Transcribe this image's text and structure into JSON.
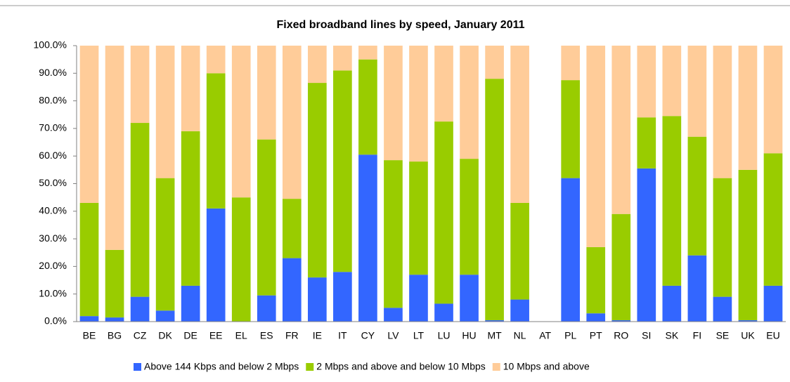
{
  "chart_data": {
    "type": "stacked_bar",
    "title": "Fixed broadband lines by speed, January 2011",
    "categories": [
      "BE",
      "BG",
      "CZ",
      "DK",
      "DE",
      "EE",
      "EL",
      "ES",
      "FR",
      "IE",
      "IT",
      "CY",
      "LV",
      "LT",
      "LU",
      "HU",
      "MT",
      "NL",
      "AT",
      "PL",
      "PT",
      "RO",
      "SI",
      "SK",
      "FI",
      "SE",
      "UK",
      "EU"
    ],
    "series": [
      {
        "name": "Above 144 Kbps and below 2 Mbps",
        "color": "#3366ff",
        "values": [
          2,
          1.5,
          9,
          4,
          13,
          41,
          0,
          9.5,
          23,
          16,
          18,
          60.5,
          5,
          17,
          6.5,
          17,
          0.5,
          8,
          null,
          52,
          3,
          0.5,
          55.5,
          13,
          24,
          9,
          0.5,
          13
        ]
      },
      {
        "name": "2 Mbps and above and below 10 Mbps",
        "color": "#99cc00",
        "values": [
          41,
          24.5,
          63,
          48,
          56,
          49,
          45,
          56.5,
          21.5,
          70.5,
          73,
          34.5,
          53.5,
          41,
          66,
          42,
          87.5,
          35,
          null,
          35.5,
          24,
          38.5,
          18.5,
          61.5,
          43,
          43,
          54.5,
          48
        ]
      },
      {
        "name": "10 Mbps and above",
        "color": "#ffcc99",
        "values": [
          57,
          74,
          28,
          48,
          31,
          10,
          55,
          34,
          55.5,
          13.5,
          9,
          5,
          41.5,
          42,
          27.5,
          41,
          12,
          57,
          null,
          12.5,
          73,
          61,
          26,
          25.5,
          33,
          48,
          45,
          39
        ]
      }
    ],
    "ylim": [
      0,
      100
    ],
    "yticks": [
      {
        "value": 0,
        "label": "0.0%"
      },
      {
        "value": 10,
        "label": "10.0%"
      },
      {
        "value": 20,
        "label": "20.0%"
      },
      {
        "value": 30,
        "label": "30.0%"
      },
      {
        "value": 40,
        "label": "40.0%"
      },
      {
        "value": 50,
        "label": "50.0%"
      },
      {
        "value": 60,
        "label": "60.0%"
      },
      {
        "value": 70,
        "label": "70.0%"
      },
      {
        "value": 80,
        "label": "80.0%"
      },
      {
        "value": 90,
        "label": "90.0%"
      },
      {
        "value": 100,
        "label": "100.0%"
      }
    ],
    "legend": "bottom"
  }
}
